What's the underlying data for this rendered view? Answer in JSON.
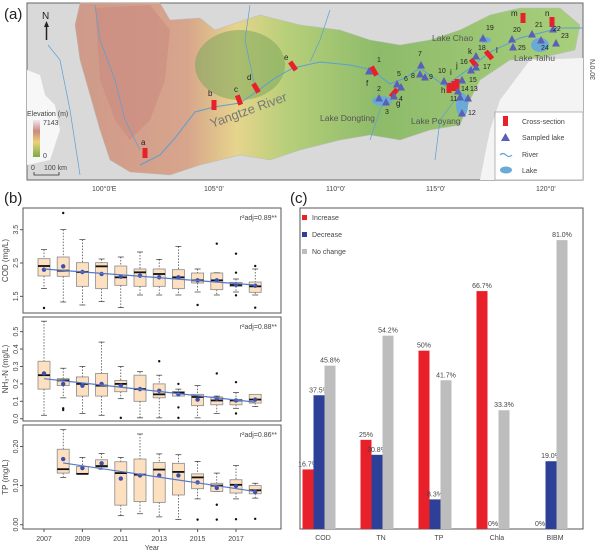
{
  "panel_labels": {
    "a": "(a)",
    "b": "(b)",
    "c": "(c)"
  },
  "map": {
    "north_label": "N",
    "elevation_title": "Elevation (m)",
    "elevation_max": "7143",
    "elevation_min": "0",
    "scale_zero": "0",
    "scale_label": "100 km",
    "lon_ticks": [
      "100°0'E",
      "105°0'",
      "110°0'",
      "115°0'",
      "120°0'"
    ],
    "lat_tick": "30°0'N",
    "river_name": "Yangtze River",
    "lake_names": [
      "Lake Chao",
      "Lake Taihu",
      "Lake Dongting",
      "Lake Poyang"
    ],
    "cross_sections": [
      "a",
      "b",
      "c",
      "d",
      "e",
      "f",
      "g",
      "h",
      "i",
      "j",
      "k",
      "l",
      "m",
      "n"
    ],
    "sampled_lakes": [
      "1",
      "2",
      "3",
      "4",
      "5",
      "6",
      "7",
      "8",
      "9",
      "10",
      "11",
      "12",
      "13",
      "14",
      "15",
      "16",
      "17",
      "18",
      "19",
      "20",
      "21",
      "22",
      "23",
      "24",
      "25"
    ],
    "legend": [
      "Cross-section",
      "Sampled lake",
      "River",
      "Lake"
    ],
    "colors": {
      "cross_section": "#e8202a",
      "lake_marker": "#5a5fb8",
      "river": "#5a9fd4",
      "lake": "#6aaad6"
    }
  },
  "chart_data": [
    {
      "type": "boxplot",
      "panel": "b-top",
      "ylabel": "COD (mg/L)",
      "yticks": [
        "1.5",
        "2.5",
        "3.5"
      ],
      "ylim": [
        1.0,
        4.15
      ],
      "stat": "r²adj=0.89**",
      "trend": {
        "start_year": 2007,
        "end_year": 2018,
        "start": 2.32,
        "end": 1.84
      },
      "boxes": [
        {
          "year": 2007,
          "lo": 1.73,
          "q1": 2.11,
          "med": 2.41,
          "q3": 2.63,
          "hi": 2.9,
          "mean": 2.3,
          "out": [
            1.15
          ]
        },
        {
          "year": 2008,
          "lo": 1.33,
          "q1": 2.1,
          "med": 2.27,
          "q3": 2.68,
          "hi": 3.5,
          "mean": 2.4,
          "out": [
            4.0
          ]
        },
        {
          "year": 2009,
          "lo": 1.24,
          "q1": 1.8,
          "med": 2.23,
          "q3": 2.51,
          "hi": 3.2,
          "mean": 2.23,
          "out": []
        },
        {
          "year": 2010,
          "lo": 1.34,
          "q1": 1.73,
          "med": 2.4,
          "q3": 2.51,
          "hi": 2.62,
          "mean": 2.17,
          "out": []
        },
        {
          "year": 2011,
          "lo": 1.16,
          "q1": 1.83,
          "med": 2.07,
          "q3": 2.41,
          "hi": 2.68,
          "mean": 2.09,
          "out": []
        },
        {
          "year": 2012,
          "lo": 1.54,
          "q1": 1.8,
          "med": 2.22,
          "q3": 2.32,
          "hi": 2.83,
          "mean": 2.12,
          "out": []
        },
        {
          "year": 2013,
          "lo": 1.54,
          "q1": 1.8,
          "med": 2.17,
          "q3": 2.32,
          "hi": 2.61,
          "mean": 2.07,
          "out": []
        },
        {
          "year": 2014,
          "lo": 1.54,
          "q1": 1.73,
          "med": 2.07,
          "q3": 2.3,
          "hi": 3.0,
          "mean": 2.07,
          "out": []
        },
        {
          "year": 2015,
          "lo": 1.63,
          "q1": 1.9,
          "med": 1.98,
          "q3": 2.2,
          "hi": 2.32,
          "mean": 1.98,
          "out": [
            1.24
          ]
        },
        {
          "year": 2016,
          "lo": 1.54,
          "q1": 1.7,
          "med": 1.98,
          "q3": 2.2,
          "hi": 2.21,
          "mean": 1.98,
          "out": [
            3.08
          ]
        },
        {
          "year": 2017,
          "lo": 1.63,
          "q1": 1.8,
          "med": 1.84,
          "q3": 1.92,
          "hi": 2.02,
          "mean": 1.85,
          "out": [
            2.78,
            2.21,
            1.53
          ]
        },
        {
          "year": 2018,
          "lo": 1.54,
          "q1": 1.62,
          "med": 1.8,
          "q3": 1.93,
          "hi": 2.32,
          "mean": 1.82,
          "out": [
            2.41,
            1.16
          ]
        }
      ]
    },
    {
      "type": "boxplot",
      "panel": "b-middle",
      "ylabel": "NH₃-N (mg/L)",
      "yticks": [
        "0.0",
        "0.1",
        "0.2",
        "0.3",
        "0.4",
        "0.5"
      ],
      "ylim": [
        -0.013,
        0.584
      ],
      "stat": "r²adj=0.88**",
      "trend": {
        "start_year": 2007,
        "end_year": 2018,
        "start": 0.23,
        "end": 0.095
      },
      "boxes": [
        {
          "year": 2007,
          "lo": 0.02,
          "q1": 0.17,
          "med": 0.25,
          "q3": 0.33,
          "hi": 0.56,
          "mean": 0.26,
          "out": []
        },
        {
          "year": 2008,
          "lo": 0.12,
          "q1": 0.19,
          "med": 0.22,
          "q3": 0.23,
          "hi": 0.29,
          "mean": 0.2,
          "out": [
            0.06,
            0.05
          ]
        },
        {
          "year": 2009,
          "lo": 0.03,
          "q1": 0.13,
          "med": 0.2,
          "q3": 0.24,
          "hi": 0.3,
          "mean": 0.19,
          "out": []
        },
        {
          "year": 2010,
          "lo": 0.02,
          "q1": 0.13,
          "med": 0.19,
          "q3": 0.26,
          "hi": 0.44,
          "mean": 0.2,
          "out": []
        },
        {
          "year": 2011,
          "lo": 0.115,
          "q1": 0.155,
          "med": 0.2,
          "q3": 0.22,
          "hi": 0.3,
          "mean": 0.19,
          "out": [
            0.005
          ]
        },
        {
          "year": 2012,
          "lo": 0.005,
          "q1": 0.1,
          "med": 0.17,
          "q3": 0.25,
          "hi": 0.27,
          "mean": 0.17,
          "out": []
        },
        {
          "year": 2013,
          "lo": 0.005,
          "q1": 0.12,
          "med": 0.14,
          "q3": 0.2,
          "hi": 0.25,
          "mean": 0.16,
          "out": [
            0.33
          ]
        },
        {
          "year": 2014,
          "lo": 0.13,
          "q1": 0.13,
          "med": 0.15,
          "q3": 0.155,
          "hi": 0.17,
          "mean": 0.14,
          "out": [
            0.2,
            0.065,
            0.005
          ]
        },
        {
          "year": 2015,
          "lo": 0.005,
          "q1": 0.075,
          "med": 0.125,
          "q3": 0.14,
          "hi": 0.19,
          "mean": 0.11,
          "out": []
        },
        {
          "year": 2016,
          "lo": 0.03,
          "q1": 0.08,
          "med": 0.105,
          "q3": 0.125,
          "hi": 0.13,
          "mean": 0.115,
          "out": [
            0.26
          ]
        },
        {
          "year": 2017,
          "lo": 0.06,
          "q1": 0.08,
          "med": 0.105,
          "q3": 0.11,
          "hi": 0.15,
          "mean": 0.105,
          "out": [
            0.21,
            0.03
          ]
        },
        {
          "year": 2018,
          "lo": 0.07,
          "q1": 0.09,
          "med": 0.11,
          "q3": 0.14,
          "hi": 0.14,
          "mean": 0.11,
          "out": []
        }
      ]
    },
    {
      "type": "boxplot",
      "panel": "b-bottom",
      "ylabel": "TP (mg/L)",
      "xlabel": "Year",
      "xticks": [
        "2007",
        "2009",
        "2011",
        "2013",
        "2015",
        "2017"
      ],
      "yticks": [
        "0.00",
        "0.10",
        "0.20"
      ],
      "ylim": [
        -0.011,
        0.255
      ],
      "stat": "r²adj=0.86**",
      "trend": {
        "start_year": 2008,
        "end_year": 2018,
        "start": 0.158,
        "end": 0.085
      },
      "boxes": [
        {
          "year": 2008,
          "lo": 0.121,
          "q1": 0.132,
          "med": 0.142,
          "q3": 0.193,
          "hi": 0.243,
          "mean": 0.168,
          "out": []
        },
        {
          "year": 2009,
          "lo": 0.13,
          "q1": 0.13,
          "med": 0.13,
          "q3": 0.149,
          "hi": 0.172,
          "mean": 0.145,
          "out": []
        },
        {
          "year": 2010,
          "lo": 0.142,
          "q1": 0.147,
          "med": 0.15,
          "q3": 0.166,
          "hi": 0.182,
          "mean": 0.157,
          "out": []
        },
        {
          "year": 2011,
          "lo": 0.023,
          "q1": 0.05,
          "med": 0.132,
          "q3": 0.161,
          "hi": 0.172,
          "mean": 0.118,
          "out": []
        },
        {
          "year": 2012,
          "lo": 0.028,
          "q1": 0.059,
          "med": 0.128,
          "q3": 0.168,
          "hi": 0.232,
          "mean": 0.126,
          "out": []
        },
        {
          "year": 2013,
          "lo": 0.02,
          "q1": 0.057,
          "med": 0.141,
          "q3": 0.159,
          "hi": 0.181,
          "mean": 0.126,
          "out": []
        },
        {
          "year": 2014,
          "lo": 0.013,
          "q1": 0.076,
          "med": 0.135,
          "q3": 0.157,
          "hi": 0.179,
          "mean": 0.126,
          "out": []
        },
        {
          "year": 2015,
          "lo": 0.066,
          "q1": 0.092,
          "med": 0.121,
          "q3": 0.13,
          "hi": 0.162,
          "mean": 0.108,
          "out": [
            0.013
          ]
        },
        {
          "year": 2016,
          "lo": 0.085,
          "q1": 0.085,
          "med": 0.1,
          "q3": 0.106,
          "hi": 0.132,
          "mean": 0.094,
          "out": [
            0.051,
            0.013
          ]
        },
        {
          "year": 2017,
          "lo": 0.066,
          "q1": 0.081,
          "med": 0.102,
          "q3": 0.115,
          "hi": 0.151,
          "mean": 0.099,
          "out": [
            0.014
          ]
        },
        {
          "year": 2018,
          "lo": 0.068,
          "q1": 0.079,
          "med": 0.088,
          "q3": 0.1,
          "hi": 0.106,
          "mean": 0.084,
          "out": [
            0.015
          ]
        }
      ]
    },
    {
      "type": "bar",
      "panel": "c",
      "categories": [
        "COD",
        "TN",
        "TP",
        "Chla",
        "BIBM"
      ],
      "ylim": [
        0,
        90
      ],
      "legend_position": "top-left",
      "series": [
        {
          "name": "Increase",
          "color": "#e8202a",
          "values": [
            16.7,
            25,
            50,
            66.7,
            0
          ],
          "labels": [
            "16.7%",
            "25%",
            "50%",
            "66.7%",
            "0%"
          ]
        },
        {
          "name": "Decrease",
          "color": "#2e3f98",
          "values": [
            37.5,
            20.8,
            8.3,
            0,
            19.0
          ],
          "labels": [
            "37.5%",
            "20.8%",
            "8.3%",
            "0%",
            "19.0%"
          ]
        },
        {
          "name": "No change",
          "color": "#bdbdbd",
          "values": [
            45.8,
            54.2,
            41.7,
            33.3,
            81.0
          ],
          "labels": [
            "45.8%",
            "54.2%",
            "41.7%",
            "33.3%",
            "81.0%"
          ]
        }
      ]
    }
  ]
}
